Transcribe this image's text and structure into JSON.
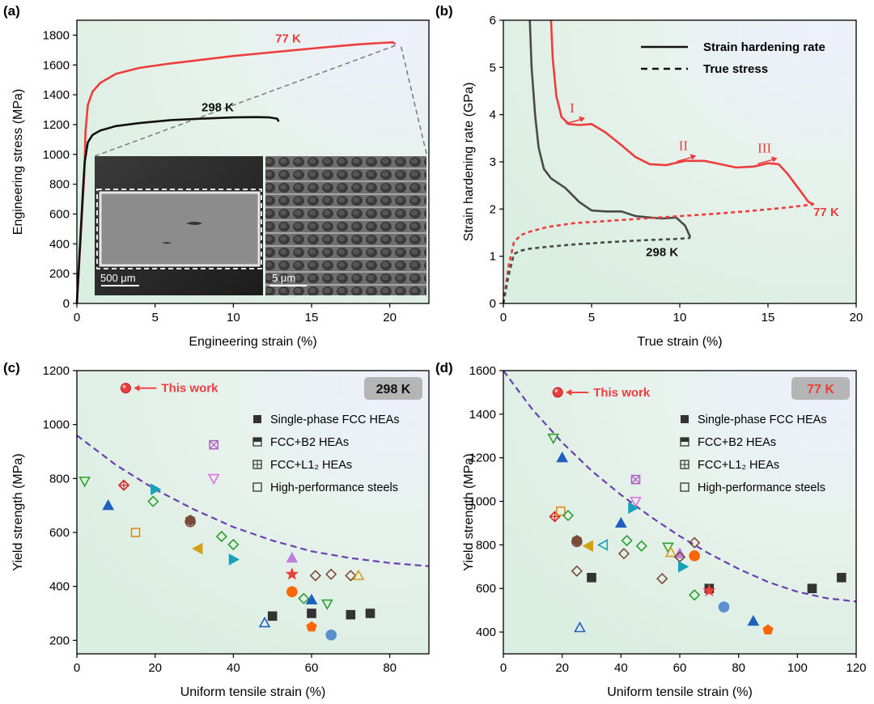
{
  "colors": {
    "red": "#ee3d3d",
    "black": "#111111",
    "gray": "#4a4a4a",
    "dash": "#7a7a7a",
    "purple": "#6a3fb0"
  },
  "panels": [
    {
      "id": "a",
      "label": "(a)",
      "xlabel": "Engineering strain (%)",
      "ylabel": "Engineering stress (MPa)",
      "xlim": [
        0,
        22.5
      ],
      "ylim": [
        0,
        1900
      ],
      "xticks": [
        0,
        5,
        10,
        15,
        20
      ],
      "yticks": [
        0,
        200,
        400,
        600,
        800,
        1000,
        1200,
        1400,
        1600,
        1800
      ],
      "series": [
        {
          "name": "77 K",
          "color": "#ee3d3d",
          "style": "solid",
          "x": [
            0,
            0.45,
            0.5,
            0.55,
            0.7,
            1.0,
            1.5,
            2.5,
            4,
            6,
            8,
            10,
            12,
            14,
            16,
            18,
            19.5,
            20.2,
            20.35
          ],
          "y": [
            0,
            820,
            950,
            1150,
            1330,
            1420,
            1480,
            1540,
            1580,
            1610,
            1635,
            1660,
            1680,
            1700,
            1720,
            1738,
            1748,
            1752,
            1740
          ]
        },
        {
          "name": "298 K",
          "color": "#111111",
          "style": "solid",
          "x": [
            0,
            0.4,
            0.5,
            0.7,
            1.0,
            1.5,
            2.5,
            4,
            6,
            8,
            10,
            11.5,
            12.3,
            12.8,
            12.9
          ],
          "y": [
            0,
            780,
            950,
            1080,
            1130,
            1160,
            1190,
            1210,
            1230,
            1240,
            1248,
            1250,
            1248,
            1240,
            1220
          ]
        }
      ],
      "annotations": [
        {
          "text": "77 K",
          "x": 13.5,
          "y": 1750,
          "color": "#ee3d3d"
        },
        {
          "text": "298 K",
          "x": 9.0,
          "y": 1290,
          "color": "#111111"
        }
      ],
      "inset": {
        "scale_left": "500 μm",
        "scale_right": "5 μm"
      }
    },
    {
      "id": "b",
      "label": "(b)",
      "xlabel": "True strain (%)",
      "ylabel": "Strain hardening rate (GPa)",
      "xlim": [
        0,
        20
      ],
      "ylim": [
        0,
        6
      ],
      "xticks": [
        0,
        5,
        10,
        15,
        20
      ],
      "yticks": [
        0,
        1,
        2,
        3,
        4,
        5,
        6
      ],
      "legend": [
        {
          "label": "Strain hardening rate",
          "style": "solid"
        },
        {
          "label": "True stress",
          "style": "dashed"
        }
      ],
      "series": [
        {
          "name": "77 K hardening",
          "color": "#ee3d3d",
          "style": "solid",
          "x": [
            2.7,
            2.8,
            3.0,
            3.3,
            3.7,
            4.3,
            5.0,
            5.8,
            6.7,
            7.5,
            8.3,
            9.2,
            10.3,
            11.4,
            12.3,
            13.2,
            14.2,
            15.0,
            15.6,
            16.1,
            16.6,
            17.0,
            17.3,
            17.6
          ],
          "y": [
            6.0,
            5.2,
            4.4,
            3.95,
            3.8,
            3.78,
            3.8,
            3.62,
            3.35,
            3.1,
            2.95,
            2.93,
            3.02,
            3.02,
            2.95,
            2.88,
            2.9,
            2.97,
            2.95,
            2.75,
            2.5,
            2.3,
            2.15,
            2.1
          ]
        },
        {
          "name": "298 K hardening",
          "color": "#4a4a4a",
          "style": "solid",
          "x": [
            1.5,
            1.6,
            1.8,
            2.0,
            2.3,
            2.7,
            3.5,
            4.3,
            5.0,
            5.8,
            6.7,
            7.5,
            8.3,
            9.0,
            9.8,
            10.3,
            10.6
          ],
          "y": [
            6.0,
            5.0,
            4.0,
            3.3,
            2.85,
            2.65,
            2.45,
            2.15,
            1.97,
            1.95,
            1.95,
            1.85,
            1.82,
            1.8,
            1.82,
            1.65,
            1.4
          ]
        },
        {
          "name": "77 K true stress",
          "color": "#ee3d3d",
          "style": "dashed",
          "x": [
            0,
            0.3,
            0.6,
            1.0,
            1.5,
            2.5,
            4,
            6,
            8,
            10,
            12,
            14,
            16,
            17.6
          ],
          "y": [
            0,
            0.8,
            1.3,
            1.45,
            1.52,
            1.62,
            1.7,
            1.75,
            1.8,
            1.85,
            1.9,
            1.96,
            2.03,
            2.1
          ]
        },
        {
          "name": "298 K true stress",
          "color": "#4a4a4a",
          "style": "dashed",
          "x": [
            0,
            0.3,
            0.6,
            1.0,
            1.5,
            2.5,
            4,
            6,
            8,
            10,
            10.6
          ],
          "y": [
            0,
            0.6,
            1.05,
            1.12,
            1.16,
            1.2,
            1.25,
            1.3,
            1.34,
            1.37,
            1.39
          ]
        }
      ],
      "annotations": [
        {
          "text": "77 K",
          "x": 18.3,
          "y": 1.85,
          "color": "#ee3d3d"
        },
        {
          "text": "298 K",
          "x": 9.0,
          "y": 1.0,
          "color": "#111111"
        },
        {
          "text": "I",
          "x": 3.9,
          "y": 4.05,
          "color": "#ee3d3d"
        },
        {
          "text": "II",
          "x": 10.2,
          "y": 3.25,
          "color": "#ee3d3d"
        },
        {
          "text": "III",
          "x": 14.8,
          "y": 3.2,
          "color": "#ee3d3d"
        }
      ]
    },
    {
      "id": "c",
      "label": "(c)",
      "temp_badge": "298 K",
      "xlabel": "Uniform tensile strain (%)",
      "ylabel": "Yield strength (MPa)",
      "xlim": [
        0,
        90
      ],
      "ylim": [
        150,
        1200
      ],
      "xticks": [
        0,
        20,
        40,
        60,
        80
      ],
      "yticks": [
        200,
        400,
        600,
        800,
        1000,
        1200
      ],
      "this_work": {
        "x": 12.5,
        "y": 1135,
        "label": "This work"
      },
      "legend": [
        "Single-phase FCC HEAs",
        "FCC+B2 HEAs",
        "FCC+L1₂ HEAs",
        "High-performance steels"
      ],
      "trend": {
        "x": [
          0,
          10,
          20,
          30,
          40,
          50,
          60,
          70,
          80,
          90
        ],
        "y": [
          960,
          850,
          760,
          685,
          620,
          570,
          530,
          505,
          487,
          475
        ]
      },
      "points": [
        {
          "x": 2,
          "y": 790,
          "m": "tri-down",
          "c": "#2ca02c",
          "f": false
        },
        {
          "x": 8,
          "y": 700,
          "m": "tri-up",
          "c": "#1f5fbf",
          "f": true
        },
        {
          "x": 12,
          "y": 775,
          "m": "diamond-plus",
          "c": "#d62728",
          "f": false
        },
        {
          "x": 15,
          "y": 600,
          "m": "square",
          "c": "#e08a1e",
          "f": false
        },
        {
          "x": 19.5,
          "y": 715,
          "m": "diamond",
          "c": "#2ca02c",
          "f": false
        },
        {
          "x": 20,
          "y": 760,
          "m": "tri-right",
          "c": "#17a2b8",
          "f": true
        },
        {
          "x": 29,
          "y": 645,
          "m": "hex",
          "c": "#7a4a3a",
          "f": true
        },
        {
          "x": 29,
          "y": 640,
          "m": "circle",
          "c": "#7a4a3a",
          "f": false
        },
        {
          "x": 31,
          "y": 540,
          "m": "tri-left",
          "c": "#d4a017",
          "f": true
        },
        {
          "x": 35,
          "y": 925,
          "m": "square-x",
          "c": "#b060c0",
          "f": false
        },
        {
          "x": 35,
          "y": 800,
          "m": "tri-down",
          "c": "#e070e0",
          "f": false
        },
        {
          "x": 37,
          "y": 585,
          "m": "diamond",
          "c": "#2ca02c",
          "f": false
        },
        {
          "x": 40,
          "y": 555,
          "m": "diamond",
          "c": "#2ca02c",
          "f": false
        },
        {
          "x": 40,
          "y": 500,
          "m": "tri-right",
          "c": "#17a2b8",
          "f": true
        },
        {
          "x": 48,
          "y": 265,
          "m": "tri-up",
          "c": "#1f5fbf",
          "f": false
        },
        {
          "x": 50,
          "y": 290,
          "m": "square",
          "c": "#333333",
          "f": true
        },
        {
          "x": 55,
          "y": 505,
          "m": "tri-up",
          "c": "#c080e0",
          "f": true
        },
        {
          "x": 55,
          "y": 445,
          "m": "star",
          "c": "#ee3d3d",
          "f": true
        },
        {
          "x": 55,
          "y": 380,
          "m": "circle",
          "c": "#ff6600",
          "f": true
        },
        {
          "x": 58,
          "y": 355,
          "m": "diamond",
          "c": "#2ca02c",
          "f": false
        },
        {
          "x": 60,
          "y": 350,
          "m": "tri-up",
          "c": "#1f5fbf",
          "f": true
        },
        {
          "x": 60,
          "y": 300,
          "m": "square",
          "c": "#333333",
          "f": true
        },
        {
          "x": 60,
          "y": 250,
          "m": "pentagon",
          "c": "#ff6600",
          "f": true
        },
        {
          "x": 61,
          "y": 440,
          "m": "diamond",
          "c": "#7a4a3a",
          "f": false
        },
        {
          "x": 64,
          "y": 335,
          "m": "tri-down",
          "c": "#2ca02c",
          "f": false
        },
        {
          "x": 65,
          "y": 220,
          "m": "circle",
          "c": "#5b8fd0",
          "f": true
        },
        {
          "x": 65,
          "y": 445,
          "m": "diamond",
          "c": "#7a4a3a",
          "f": false
        },
        {
          "x": 70,
          "y": 440,
          "m": "diamond",
          "c": "#7a4a3a",
          "f": false
        },
        {
          "x": 70,
          "y": 295,
          "m": "square",
          "c": "#333333",
          "f": true
        },
        {
          "x": 72,
          "y": 440,
          "m": "tri-up",
          "c": "#d4a017",
          "f": false
        },
        {
          "x": 75,
          "y": 300,
          "m": "square",
          "c": "#333333",
          "f": true
        }
      ]
    },
    {
      "id": "d",
      "label": "(d)",
      "temp_badge": "77 K",
      "xlabel": "Uniform tensile strain (%)",
      "ylabel": "Yield strength (MPa)",
      "xlim": [
        0,
        120
      ],
      "ylim": [
        300,
        1600
      ],
      "xticks": [
        0,
        20,
        40,
        60,
        80,
        100,
        120
      ],
      "yticks": [
        400,
        600,
        800,
        1000,
        1200,
        1400,
        1600
      ],
      "this_work": {
        "x": 18.5,
        "y": 1500,
        "label": "This work"
      },
      "legend": [
        "Single-phase FCC HEAs",
        "FCC+B2 HEAs",
        "FCC+L1₂ HEAs",
        "High-performance steels"
      ],
      "trend": {
        "x": [
          0,
          10,
          20,
          30,
          40,
          50,
          60,
          70,
          80,
          90,
          100,
          110,
          120
        ],
        "y": [
          1600,
          1420,
          1270,
          1140,
          1030,
          930,
          840,
          760,
          690,
          630,
          585,
          555,
          540
        ]
      },
      "points": [
        {
          "x": 17,
          "y": 1290,
          "m": "tri-down",
          "c": "#2ca02c",
          "f": false
        },
        {
          "x": 20,
          "y": 1200,
          "m": "tri-up",
          "c": "#1f5fbf",
          "f": true
        },
        {
          "x": 17.5,
          "y": 930,
          "m": "diamond-plus",
          "c": "#d62728",
          "f": false
        },
        {
          "x": 19.5,
          "y": 955,
          "m": "square",
          "c": "#e08a1e",
          "f": false
        },
        {
          "x": 22,
          "y": 935,
          "m": "diamond",
          "c": "#2ca02c",
          "f": false
        },
        {
          "x": 25,
          "y": 820,
          "m": "hex",
          "c": "#7a4a3a",
          "f": true
        },
        {
          "x": 25,
          "y": 815,
          "m": "circle",
          "c": "#7a4a3a",
          "f": false
        },
        {
          "x": 25,
          "y": 680,
          "m": "diamond",
          "c": "#7a4a3a",
          "f": false
        },
        {
          "x": 26,
          "y": 420,
          "m": "tri-up",
          "c": "#1f5fbf",
          "f": false
        },
        {
          "x": 29,
          "y": 795,
          "m": "tri-left",
          "c": "#d4a017",
          "f": true
        },
        {
          "x": 30,
          "y": 650,
          "m": "square",
          "c": "#333333",
          "f": true
        },
        {
          "x": 34,
          "y": 800,
          "m": "tri-left",
          "c": "#17a2b8",
          "f": false
        },
        {
          "x": 40,
          "y": 900,
          "m": "tri-up",
          "c": "#1f5fbf",
          "f": true
        },
        {
          "x": 41,
          "y": 760,
          "m": "diamond",
          "c": "#7a4a3a",
          "f": false
        },
        {
          "x": 42,
          "y": 820,
          "m": "diamond",
          "c": "#2ca02c",
          "f": false
        },
        {
          "x": 44,
          "y": 970,
          "m": "tri-right",
          "c": "#17a2b8",
          "f": true
        },
        {
          "x": 45,
          "y": 1100,
          "m": "square-x",
          "c": "#b060c0",
          "f": false
        },
        {
          "x": 45,
          "y": 1000,
          "m": "tri-down",
          "c": "#e070e0",
          "f": false
        },
        {
          "x": 47,
          "y": 795,
          "m": "diamond",
          "c": "#2ca02c",
          "f": false
        },
        {
          "x": 54,
          "y": 645,
          "m": "diamond",
          "c": "#7a4a3a",
          "f": false
        },
        {
          "x": 56,
          "y": 790,
          "m": "tri-down",
          "c": "#2ca02c",
          "f": false
        },
        {
          "x": 57,
          "y": 765,
          "m": "tri-up",
          "c": "#d4a017",
          "f": false
        },
        {
          "x": 60,
          "y": 760,
          "m": "tri-up",
          "c": "#c080e0",
          "f": true
        },
        {
          "x": 60,
          "y": 745,
          "m": "diamond",
          "c": "#7a4a3a",
          "f": false
        },
        {
          "x": 61,
          "y": 700,
          "m": "tri-right",
          "c": "#17a2b8",
          "f": true
        },
        {
          "x": 65,
          "y": 810,
          "m": "diamond",
          "c": "#7a4a3a",
          "f": false
        },
        {
          "x": 65,
          "y": 750,
          "m": "circle",
          "c": "#ff6600",
          "f": true
        },
        {
          "x": 65,
          "y": 570,
          "m": "diamond",
          "c": "#2ca02c",
          "f": false
        },
        {
          "x": 70,
          "y": 600,
          "m": "square",
          "c": "#333333",
          "f": true
        },
        {
          "x": 70,
          "y": 590,
          "m": "star",
          "c": "#ee3d3d",
          "f": true
        },
        {
          "x": 75,
          "y": 515,
          "m": "circle",
          "c": "#5b8fd0",
          "f": true
        },
        {
          "x": 85,
          "y": 450,
          "m": "tri-up",
          "c": "#1f5fbf",
          "f": true
        },
        {
          "x": 90,
          "y": 410,
          "m": "pentagon",
          "c": "#ff6600",
          "f": true
        },
        {
          "x": 105,
          "y": 600,
          "m": "square",
          "c": "#333333",
          "f": true
        },
        {
          "x": 115,
          "y": 650,
          "m": "square",
          "c": "#333333",
          "f": true
        }
      ]
    }
  ]
}
